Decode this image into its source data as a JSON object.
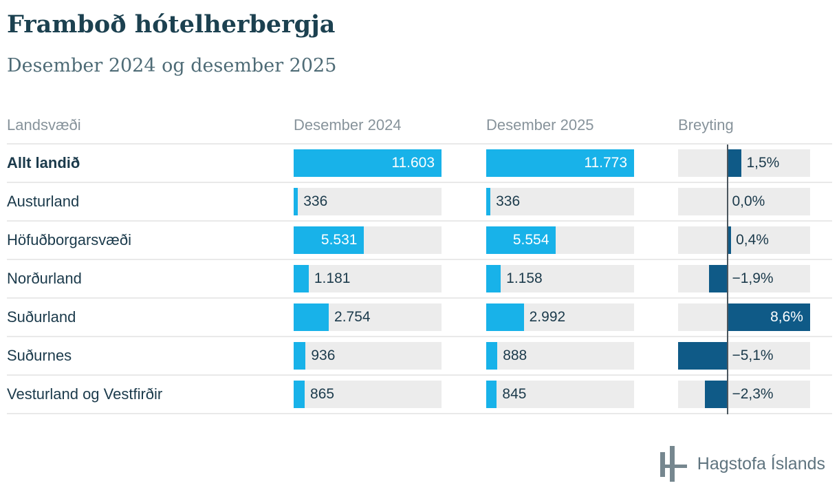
{
  "page": {
    "title": "Framboð hótelherbergja",
    "subtitle": "Desember 2024 og desember 2025"
  },
  "table": {
    "columns": [
      "Landsvæði",
      "Desember 2024",
      "Desember 2025",
      "Breyting"
    ]
  },
  "chart_data": {
    "type": "bar",
    "title": "Framboð hótelherbergja",
    "subtitle": "Desember 2024 og desember 2025",
    "categories": [
      "Allt landið",
      "Austurland",
      "Höfuðborgarsvæði",
      "Norðurland",
      "Suðurland",
      "Suðurnes",
      "Vesturland og Vestfirðir"
    ],
    "emphasized_category": "Allt landið",
    "series": [
      {
        "name": "Desember 2024",
        "values": [
          11603,
          336,
          5531,
          1181,
          2754,
          936,
          865
        ],
        "labels": [
          "11.603",
          "336",
          "5.531",
          "1.181",
          "2.754",
          "936",
          "865"
        ],
        "axis_max": 11603
      },
      {
        "name": "Desember 2025",
        "values": [
          11773,
          336,
          5554,
          1158,
          2992,
          888,
          845
        ],
        "labels": [
          "11.773",
          "336",
          "5.554",
          "1.158",
          "2.992",
          "888",
          "845"
        ],
        "axis_max": 11773
      },
      {
        "name": "Breyting",
        "values": [
          1.5,
          0.0,
          0.4,
          -1.9,
          8.6,
          -5.1,
          -2.3
        ],
        "labels": [
          "1,5%",
          "0,0%",
          "0,4%",
          "−1,9%",
          "8,6%",
          "−5,1%",
          "−2,3%"
        ],
        "axis_min": -5.1,
        "axis_max": 8.6
      }
    ],
    "layout": {
      "grid": false,
      "legend": "none",
      "orientation": "horizontal"
    },
    "colors": {
      "room_bar": "#18b2e9",
      "change_bar": "#0f5a87",
      "track": "#ececec",
      "zero_line": "#4b565e"
    }
  },
  "footer": {
    "logo_text": "Hagstofa Íslands"
  }
}
